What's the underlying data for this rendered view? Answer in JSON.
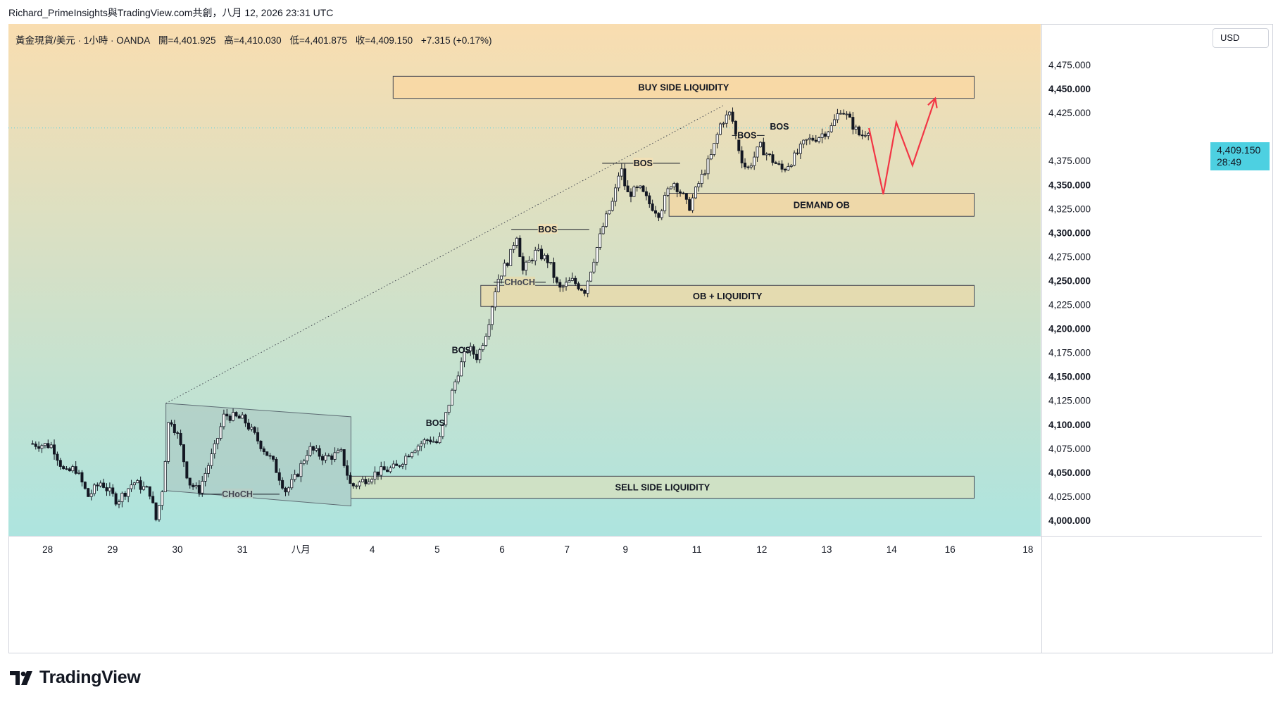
{
  "header": {
    "share_text": "Richard_PrimeInsights與TradingView.com共創，八月 12, 2026 23:31 UTC"
  },
  "legend": {
    "symbol": "黃金現貨/美元 · 1小時 · OANDA",
    "open": "開=4,401.925",
    "high": "高=4,410.030",
    "low": "低=4,401.875",
    "close": "收=4,409.150",
    "change": "+7.315 (+0.17%)"
  },
  "currency_button": "USD",
  "price_tag": {
    "price": "4,409.150",
    "countdown": "28:49"
  },
  "brand": {
    "name": "TradingView",
    "logo_icon": "tradingview-logo-icon"
  },
  "colors": {
    "bg_top": "#f9ddb0",
    "bg_bottom": "#ade4df",
    "candle": "#131722",
    "zone_buy": "#f8d9a6",
    "zone_demand": "#eed8a9",
    "zone_ob": "#e4dbb0",
    "zone_sell": "#cfe1c5",
    "channel": "#a9c4c0",
    "projection": "#f23645",
    "price_tag": "#4dd0e1"
  },
  "chart_data": {
    "type": "candlestick",
    "instrument": "黃金現貨/美元 · 1小時 · OANDA",
    "y_axis": {
      "min": 3990,
      "max": 4490,
      "ticks": [
        "4,475.000",
        "4,450.000",
        "4,425.000",
        "4,375.000",
        "4,350.000",
        "4,325.000",
        "4,300.000",
        "4,275.000",
        "4,250.000",
        "4,225.000",
        "4,200.000",
        "4,175.000",
        "4,150.000",
        "4,125.000",
        "4,100.000",
        "4,075.000",
        "4,050.000",
        "4,025.000",
        "4,000.000"
      ],
      "tick_values": [
        4475,
        4450,
        4425,
        4375,
        4350,
        4325,
        4300,
        4275,
        4250,
        4225,
        4200,
        4175,
        4150,
        4125,
        4100,
        4075,
        4050,
        4025,
        4000
      ],
      "bold_ticks": [
        "4,450.000",
        "4,350.000",
        "4,300.000",
        "4,250.000",
        "4,200.000",
        "4,150.000",
        "4,100.000",
        "4,050.000",
        "4,000.000"
      ]
    },
    "x_axis": {
      "labels": [
        "28",
        "29",
        "30",
        "31",
        "八月",
        "4",
        "5",
        "6",
        "7",
        "9",
        "11",
        "12",
        "13",
        "14",
        "16",
        "18"
      ],
      "positions": [
        0.3,
        1.3,
        2.3,
        3.3,
        4.2,
        5.3,
        6.3,
        7.3,
        8.3,
        9.2,
        10.3,
        11.3,
        12.3,
        13.3,
        14.2,
        15.4
      ]
    },
    "last_price": 4409.15,
    "price_path": [
      [
        0,
        4080
      ],
      [
        0.35,
        4078
      ],
      [
        0.55,
        4048
      ],
      [
        0.7,
        4055
      ],
      [
        0.9,
        4025
      ],
      [
        1.1,
        4040
      ],
      [
        1.35,
        4020
      ],
      [
        1.6,
        4040
      ],
      [
        1.85,
        4030
      ],
      [
        1.95,
        4000
      ],
      [
        2.05,
        4035
      ],
      [
        2.15,
        4110
      ],
      [
        2.3,
        4085
      ],
      [
        2.45,
        4040
      ],
      [
        2.6,
        4030
      ],
      [
        2.85,
        4075
      ],
      [
        3.0,
        4110
      ],
      [
        3.3,
        4105
      ],
      [
        3.55,
        4080
      ],
      [
        3.75,
        4060
      ],
      [
        3.95,
        4030
      ],
      [
        4.1,
        4045
      ],
      [
        4.3,
        4075
      ],
      [
        4.55,
        4065
      ],
      [
        4.8,
        4070
      ],
      [
        4.95,
        4035
      ],
      [
        5.1,
        4040
      ],
      [
        5.35,
        4050
      ],
      [
        5.65,
        4055
      ],
      [
        5.9,
        4075
      ],
      [
        6.15,
        4085
      ],
      [
        6.3,
        4080
      ],
      [
        6.45,
        4120
      ],
      [
        6.6,
        4155
      ],
      [
        6.75,
        4180
      ],
      [
        6.9,
        4170
      ],
      [
        7.05,
        4200
      ],
      [
        7.2,
        4250
      ],
      [
        7.4,
        4275
      ],
      [
        7.5,
        4300
      ],
      [
        7.6,
        4260
      ],
      [
        7.8,
        4280
      ],
      [
        8.0,
        4270
      ],
      [
        8.15,
        4240
      ],
      [
        8.35,
        4250
      ],
      [
        8.55,
        4240
      ],
      [
        8.7,
        4275
      ],
      [
        8.85,
        4310
      ],
      [
        9.0,
        4335
      ],
      [
        9.1,
        4370
      ],
      [
        9.2,
        4340
      ],
      [
        9.4,
        4345
      ],
      [
        9.55,
        4330
      ],
      [
        9.7,
        4320
      ],
      [
        9.9,
        4355
      ],
      [
        10.05,
        4340
      ],
      [
        10.15,
        4325
      ],
      [
        10.3,
        4350
      ],
      [
        10.5,
        4380
      ],
      [
        10.65,
        4415
      ],
      [
        10.8,
        4425
      ],
      [
        10.95,
        4380
      ],
      [
        11.05,
        4365
      ],
      [
        11.25,
        4390
      ],
      [
        11.45,
        4375
      ],
      [
        11.6,
        4365
      ],
      [
        11.8,
        4380
      ],
      [
        11.95,
        4395
      ],
      [
        12.15,
        4400
      ],
      [
        12.35,
        4410
      ],
      [
        12.5,
        4430
      ],
      [
        12.65,
        4415
      ],
      [
        12.8,
        4400
      ],
      [
        12.93,
        4409
      ]
    ],
    "projection": [
      [
        12.93,
        4409
      ],
      [
        13.15,
        4340
      ],
      [
        13.35,
        4415
      ],
      [
        13.6,
        4370
      ],
      [
        13.95,
        4440
      ]
    ],
    "zones": [
      {
        "label": "BUY SIDE LIQUIDITY",
        "x0": 5.6,
        "x1": 14.55,
        "y0": 4440,
        "y1": 4463,
        "color": "#f8d9a6"
      },
      {
        "label": "DEMAND OB",
        "x0": 9.85,
        "x1": 14.55,
        "y0": 4317,
        "y1": 4341,
        "color": "#eed8a9"
      },
      {
        "label": "OB + LIQUIDITY",
        "x0": 6.95,
        "x1": 14.55,
        "y0": 4223,
        "y1": 4245,
        "color": "#e4dbb0"
      },
      {
        "label": "SELL SIDE LIQUIDITY",
        "x0": 4.95,
        "x1": 14.55,
        "y0": 4023,
        "y1": 4046,
        "color": "#cfe1c5"
      }
    ],
    "annotations": [
      {
        "label": "BOS",
        "x": 6.25,
        "y": 4102,
        "line": false
      },
      {
        "label": "BOS",
        "x": 6.65,
        "y": 4178,
        "line": false
      },
      {
        "label": "BOS",
        "x": 7.98,
        "y": 4304,
        "line": true,
        "x0": 7.42,
        "x1": 8.62
      },
      {
        "label": "BOS",
        "x": 9.45,
        "y": 4373,
        "line": true,
        "x0": 8.82,
        "x1": 10.02
      },
      {
        "label": "BOS",
        "x": 11.05,
        "y": 4402,
        "line": true,
        "x0": 10.82,
        "x1": 11.32
      },
      {
        "label": "BOS",
        "x": 11.55,
        "y": 4411,
        "line": false
      },
      {
        "label": "CHoCH",
        "x": 3.2,
        "y": 4028,
        "line": true,
        "x0": 2.6,
        "x1": 3.85
      },
      {
        "label": "CHoCH",
        "x": 7.55,
        "y": 4249,
        "line": true,
        "x0": 7.15,
        "x1": 7.95
      }
    ],
    "channel": {
      "points": [
        [
          2.1,
          4122
        ],
        [
          4.95,
          4108
        ],
        [
          4.95,
          4015
        ],
        [
          2.1,
          4031
        ]
      ]
    },
    "trend_line": [
      [
        2.1,
        4122
      ],
      [
        10.7,
        4433
      ]
    ]
  }
}
